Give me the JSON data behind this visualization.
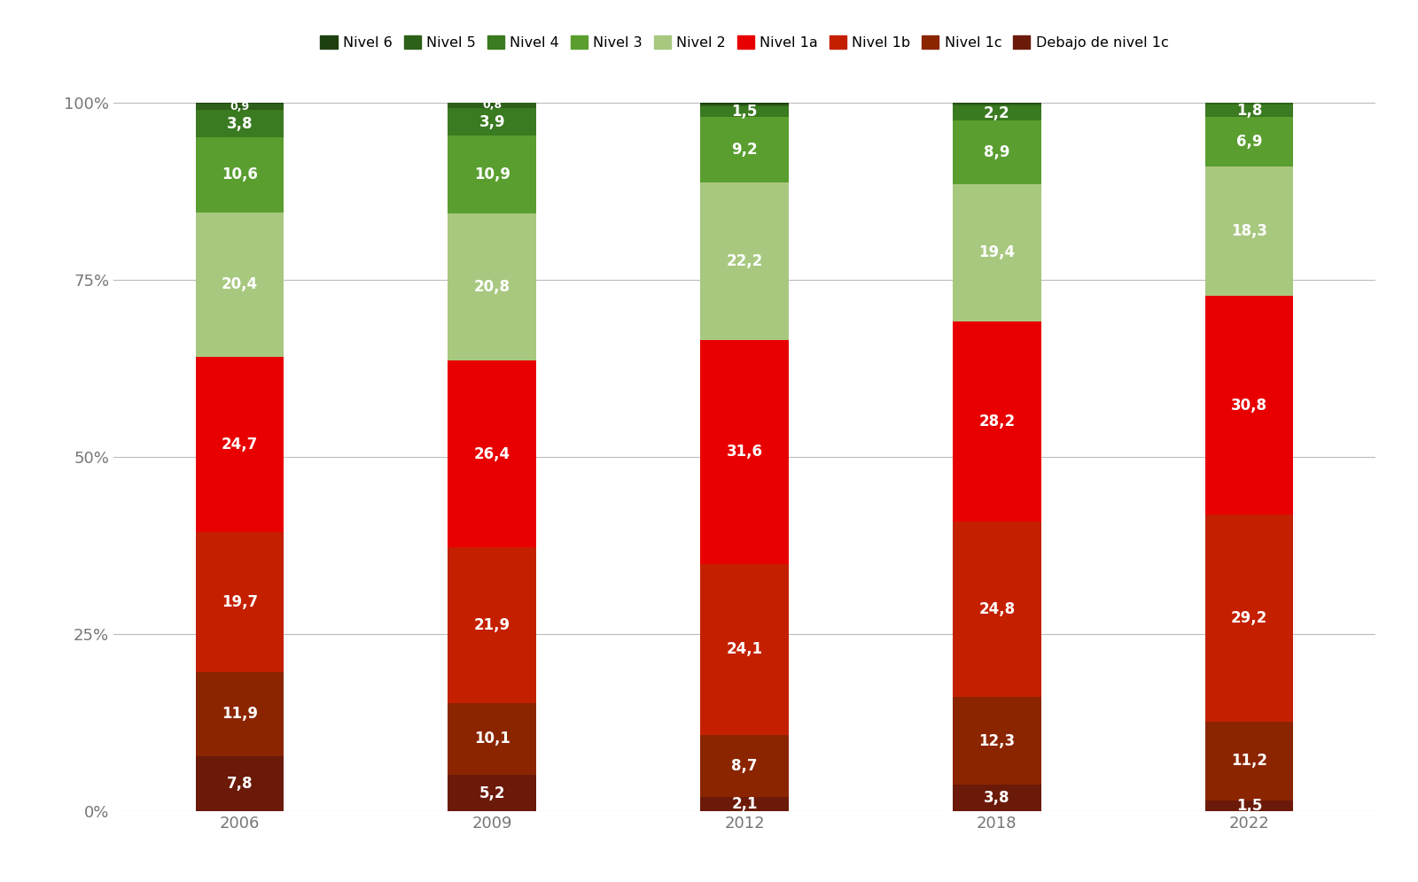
{
  "years": [
    "2006",
    "2009",
    "2012",
    "2018",
    "2022"
  ],
  "levels": [
    "Debajo de nivel 1c",
    "Nivel 1c",
    "Nivel 1b",
    "Nivel 1a",
    "Nivel 2",
    "Nivel 3",
    "Nivel 4",
    "Nivel 5",
    "Nivel 6"
  ],
  "colors": [
    "#6B1A0A",
    "#8B2500",
    "#C42000",
    "#E80000",
    "#A8C880",
    "#5A9E30",
    "#3A7A20",
    "#2D6018",
    "#1E4010"
  ],
  "values": {
    "Debajo de nivel 1c": [
      7.8,
      5.2,
      2.1,
      3.8,
      1.5
    ],
    "Nivel 1c": [
      11.9,
      10.1,
      8.7,
      12.3,
      11.2
    ],
    "Nivel 1b": [
      19.7,
      21.9,
      24.1,
      24.8,
      29.2
    ],
    "Nivel 1a": [
      24.7,
      26.4,
      31.6,
      28.2,
      30.8
    ],
    "Nivel 2": [
      20.4,
      20.8,
      22.2,
      19.4,
      18.3
    ],
    "Nivel 3": [
      10.6,
      10.9,
      9.2,
      8.9,
      6.9
    ],
    "Nivel 4": [
      3.8,
      3.9,
      1.5,
      2.2,
      1.8
    ],
    "Nivel 5": [
      0.9,
      0.8,
      0.3,
      0.2,
      0.3
    ],
    "Nivel 6": [
      0.2,
      0.0,
      0.3,
      0.2,
      0.0
    ]
  },
  "legend_order": [
    "Nivel 6",
    "Nivel 5",
    "Nivel 4",
    "Nivel 3",
    "Nivel 2",
    "Nivel 1a",
    "Nivel 1b",
    "Nivel 1c",
    "Debajo de nivel 1c"
  ],
  "legend_colors": {
    "Nivel 6": "#1E4010",
    "Nivel 5": "#2D6018",
    "Nivel 4": "#3A7A20",
    "Nivel 3": "#5A9E30",
    "Nivel 2": "#A8C880",
    "Nivel 1a": "#E80000",
    "Nivel 1b": "#C42000",
    "Nivel 1c": "#8B2500",
    "Debajo de nivel 1c": "#6B1A0A"
  },
  "background_color": "#FFFFFF",
  "grid_color": "#BBBBBB",
  "text_color": "#777777",
  "label_fontsize": 12,
  "small_label_fontsize": 9,
  "tick_fontsize": 13,
  "legend_fontsize": 11.5,
  "bar_width": 0.35,
  "ylim": [
    0,
    102
  ]
}
